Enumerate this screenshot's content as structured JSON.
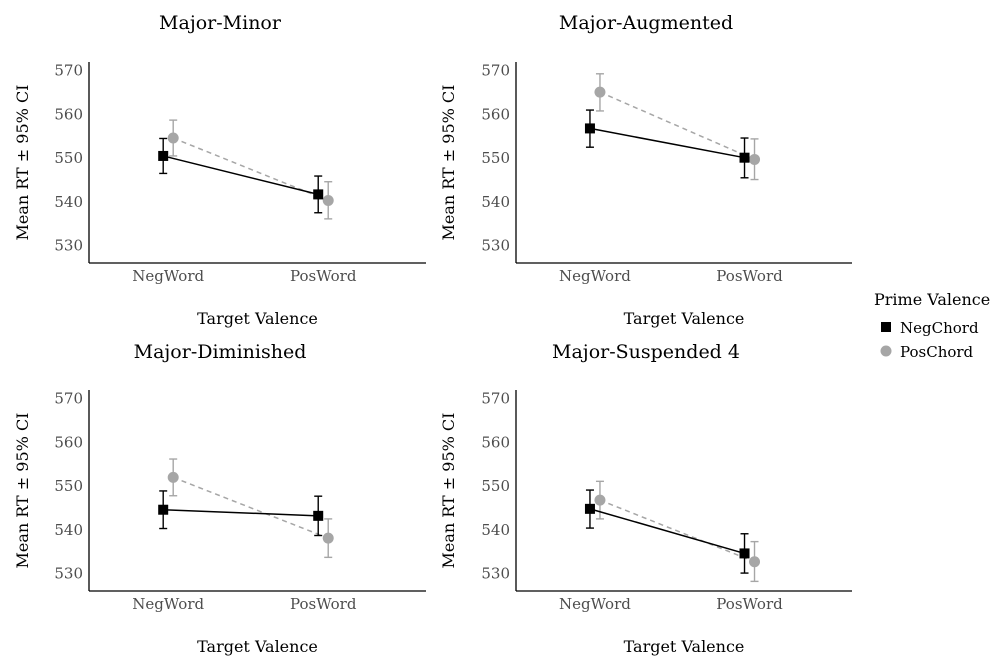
{
  "chart_data": [
    {
      "type": "line",
      "title": "Major-Minor",
      "xlabel": "Target Valence",
      "ylabel": "Mean RT ± 95% CI",
      "categories": [
        "NegWord",
        "PosWord"
      ],
      "ylim": [
        526,
        572
      ],
      "yticks": [
        530,
        540,
        550,
        560,
        570
      ],
      "series": [
        {
          "name": "NegChord",
          "values": [
            550.5,
            541.7
          ],
          "ci_low": [
            546.5,
            537.5
          ],
          "ci_high": [
            554.5,
            545.9
          ]
        },
        {
          "name": "PosChord",
          "values": [
            554.6,
            540.3
          ],
          "ci_low": [
            550.5,
            536.1
          ],
          "ci_high": [
            558.7,
            544.6
          ]
        }
      ]
    },
    {
      "type": "line",
      "title": "Major-Augmented",
      "xlabel": "Target Valence",
      "ylabel": "Mean RT ± 95% CI",
      "categories": [
        "NegWord",
        "PosWord"
      ],
      "ylim": [
        526,
        572
      ],
      "yticks": [
        530,
        540,
        550,
        560,
        570
      ],
      "series": [
        {
          "name": "NegChord",
          "values": [
            556.8,
            550.1
          ],
          "ci_low": [
            552.5,
            545.5
          ],
          "ci_high": [
            561.0,
            554.6
          ]
        },
        {
          "name": "PosChord",
          "values": [
            565.1,
            549.7
          ],
          "ci_low": [
            560.8,
            545.1
          ],
          "ci_high": [
            569.3,
            554.4
          ]
        }
      ]
    },
    {
      "type": "line",
      "title": "Major-Diminished",
      "xlabel": "Target Valence",
      "ylabel": "Mean RT ± 95% CI",
      "categories": [
        "NegWord",
        "PosWord"
      ],
      "ylim": [
        526,
        572
      ],
      "yticks": [
        530,
        540,
        550,
        560,
        570
      ],
      "series": [
        {
          "name": "NegChord",
          "values": [
            544.6,
            543.2
          ],
          "ci_low": [
            540.3,
            538.7
          ],
          "ci_high": [
            548.9,
            547.7
          ]
        },
        {
          "name": "PosChord",
          "values": [
            552.0,
            538.1
          ],
          "ci_low": [
            547.8,
            533.7
          ],
          "ci_high": [
            556.2,
            542.5
          ]
        }
      ]
    },
    {
      "type": "line",
      "title": "Major-Suspended 4",
      "xlabel": "Target Valence",
      "ylabel": "Mean RT ± 95% CI",
      "categories": [
        "NegWord",
        "PosWord"
      ],
      "ylim": [
        526,
        572
      ],
      "yticks": [
        530,
        540,
        550,
        560,
        570
      ],
      "series": [
        {
          "name": "NegChord",
          "values": [
            544.8,
            534.6
          ],
          "ci_low": [
            540.4,
            530.1
          ],
          "ci_high": [
            549.1,
            539.1
          ]
        },
        {
          "name": "PosChord",
          "values": [
            546.8,
            532.7
          ],
          "ci_low": [
            542.5,
            528.2
          ],
          "ci_high": [
            551.1,
            537.3
          ]
        }
      ]
    }
  ],
  "legend": {
    "title": "Prime Valence",
    "placement": "right",
    "items": [
      {
        "name": "NegChord",
        "color": "#000000",
        "shape": "square",
        "line": "solid"
      },
      {
        "name": "PosChord",
        "color": "#a6a6a6",
        "shape": "circle",
        "line": "dashed"
      }
    ]
  }
}
